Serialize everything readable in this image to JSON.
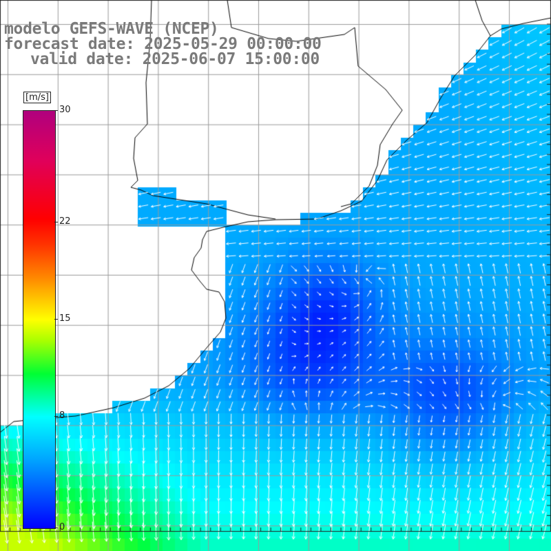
{
  "title": {
    "line1": "modelo GEFS-WAVE (NCEP)",
    "line2": "forecast date: 2025-05-29 00:00:00",
    "line3": "valid date: 2025-06-07 15:00:00"
  },
  "colorbar": {
    "units": "[m/s]",
    "min": 0,
    "max": 30,
    "ticks": [
      {
        "value": 30,
        "label": "30"
      },
      {
        "value": 22,
        "label": "22"
      },
      {
        "value": 15,
        "label": "15"
      },
      {
        "value": 8,
        "label": "8"
      },
      {
        "value": 0,
        "label": "0"
      }
    ],
    "colors": [
      "#0000ff",
      "#00aaff",
      "#00ffff",
      "#00ff33",
      "#aaff00",
      "#ffff00",
      "#ff8800",
      "#ff0000",
      "#b0007e"
    ]
  },
  "map": {
    "land_color": "#ffffff",
    "coastline_color": "#000000",
    "grid_color": "#9a9a9a",
    "arrow_color": "#ffffff",
    "lon_range": [
      -60,
      -48
    ],
    "lat_range": [
      -40,
      -28
    ],
    "gridlines_on": true
  }
}
